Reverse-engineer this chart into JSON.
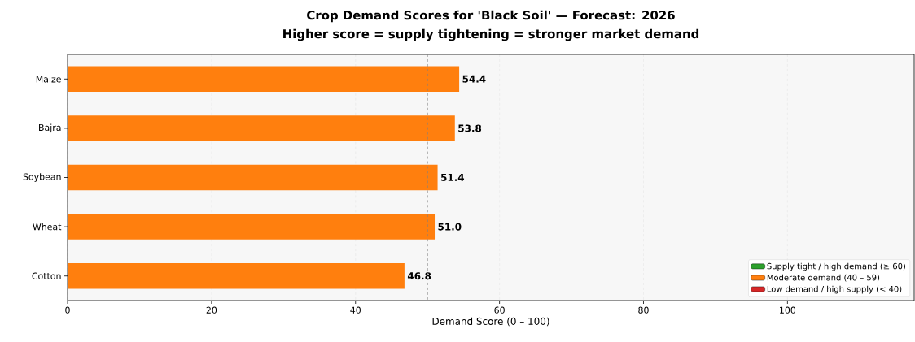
{
  "chart_data": {
    "type": "bar",
    "orientation": "horizontal",
    "title": "Crop Demand Scores for  'Black Soil'  —  Forecast: 2026",
    "subtitle": "Higher score = supply tightening = stronger market demand",
    "xlabel": "Demand Score  (0 – 100)",
    "categories": [
      "Maize",
      "Bajra",
      "Soybean",
      "Wheat",
      "Cotton"
    ],
    "series": [
      {
        "name": "Supply tight / high demand  (≥ 60)",
        "color": "#2ca02c",
        "values": [
          null,
          null,
          null,
          null,
          null
        ]
      },
      {
        "name": "Moderate demand  (40 – 59)",
        "color": "#ff7f0e",
        "values": [
          54.4,
          53.8,
          51.4,
          51.0,
          46.8
        ],
        "value_labels": [
          "54.4",
          "53.8",
          "51.4",
          "51.0",
          "46.8"
        ]
      },
      {
        "name": "Low demand / high supply  (< 40)",
        "color": "#d62728",
        "values": [
          null,
          null,
          null,
          null,
          null
        ]
      }
    ],
    "xlim": [
      0,
      117.6
    ],
    "xticks": [
      0,
      20,
      40,
      60,
      80,
      100
    ],
    "ref_lines": [
      {
        "axis": "x",
        "value": 50,
        "color": "#808080",
        "line_style": "dashed"
      }
    ],
    "grid": "x",
    "legend": "bottom right"
  }
}
